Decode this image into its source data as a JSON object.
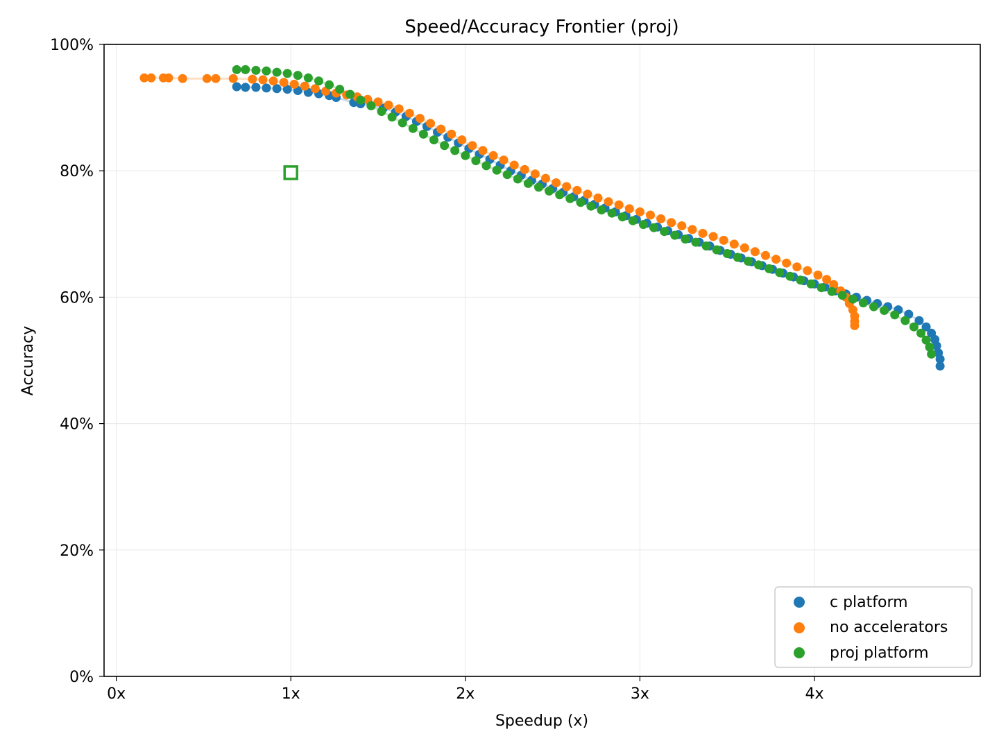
{
  "chart_data": {
    "type": "scatter",
    "title": "Speed/Accuracy Frontier (proj)",
    "xlabel": "Speedup (x)",
    "ylabel": "Accuracy",
    "xlim": [
      -0.07,
      4.95
    ],
    "ylim": [
      0,
      100
    ],
    "xticks": [
      {
        "value": 0,
        "label": "0x"
      },
      {
        "value": 1,
        "label": "1x"
      },
      {
        "value": 2,
        "label": "2x"
      },
      {
        "value": 3,
        "label": "3x"
      },
      {
        "value": 4,
        "label": "4x"
      }
    ],
    "yticks": [
      {
        "value": 0,
        "label": "0%"
      },
      {
        "value": 20,
        "label": "20%"
      },
      {
        "value": 40,
        "label": "40%"
      },
      {
        "value": 60,
        "label": "60%"
      },
      {
        "value": 80,
        "label": "80%"
      },
      {
        "value": 100,
        "label": "100%"
      }
    ],
    "grid": true,
    "legend_position": "bottom-right",
    "series": [
      {
        "name": "c platform",
        "color": "#1f77b4",
        "points": [
          [
            0.69,
            93.3
          ],
          [
            0.74,
            93.2
          ],
          [
            0.8,
            93.2
          ],
          [
            0.86,
            93.1
          ],
          [
            0.92,
            93.0
          ],
          [
            0.98,
            92.9
          ],
          [
            1.04,
            92.7
          ],
          [
            1.1,
            92.4
          ],
          [
            1.16,
            92.2
          ],
          [
            1.22,
            91.9
          ],
          [
            1.26,
            91.6
          ],
          [
            1.36,
            90.8
          ],
          [
            1.4,
            90.6
          ],
          [
            1.46,
            90.3
          ],
          [
            1.53,
            89.9
          ],
          [
            1.6,
            89.3
          ],
          [
            1.66,
            88.6
          ],
          [
            1.72,
            87.8
          ],
          [
            1.78,
            87.0
          ],
          [
            1.84,
            86.1
          ],
          [
            1.9,
            85.3
          ],
          [
            1.96,
            84.4
          ],
          [
            2.02,
            83.5
          ],
          [
            2.08,
            82.6
          ],
          [
            2.14,
            81.8
          ],
          [
            2.2,
            80.9
          ],
          [
            2.26,
            80.0
          ],
          [
            2.32,
            79.3
          ],
          [
            2.38,
            78.5
          ],
          [
            2.44,
            77.9
          ],
          [
            2.5,
            77.2
          ],
          [
            2.56,
            76.6
          ],
          [
            2.62,
            75.9
          ],
          [
            2.68,
            75.3
          ],
          [
            2.74,
            74.7
          ],
          [
            2.8,
            74.1
          ],
          [
            2.86,
            73.5
          ],
          [
            2.92,
            72.9
          ],
          [
            2.98,
            72.3
          ],
          [
            3.04,
            71.7
          ],
          [
            3.1,
            71.1
          ],
          [
            3.16,
            70.5
          ],
          [
            3.22,
            69.9
          ],
          [
            3.28,
            69.3
          ],
          [
            3.34,
            68.7
          ],
          [
            3.4,
            68.1
          ],
          [
            3.46,
            67.4
          ],
          [
            3.52,
            66.8
          ],
          [
            3.58,
            66.2
          ],
          [
            3.64,
            65.6
          ],
          [
            3.7,
            65.0
          ],
          [
            3.76,
            64.4
          ],
          [
            3.82,
            63.8
          ],
          [
            3.88,
            63.2
          ],
          [
            3.94,
            62.6
          ],
          [
            4.0,
            62.1
          ],
          [
            4.06,
            61.6
          ],
          [
            4.12,
            61.0
          ],
          [
            4.18,
            60.5
          ],
          [
            4.24,
            60.0
          ],
          [
            4.3,
            59.5
          ],
          [
            4.36,
            59.0
          ],
          [
            4.42,
            58.5
          ],
          [
            4.48,
            58.0
          ],
          [
            4.54,
            57.3
          ],
          [
            4.6,
            56.3
          ],
          [
            4.64,
            55.3
          ],
          [
            4.67,
            54.3
          ],
          [
            4.69,
            53.3
          ],
          [
            4.7,
            52.3
          ],
          [
            4.71,
            51.2
          ],
          [
            4.72,
            50.2
          ],
          [
            4.72,
            49.1
          ]
        ]
      },
      {
        "name": "no accelerators",
        "color": "#ff7f0e",
        "points": [
          [
            0.16,
            94.7
          ],
          [
            0.2,
            94.7
          ],
          [
            0.27,
            94.7
          ],
          [
            0.3,
            94.7
          ],
          [
            0.38,
            94.6
          ],
          [
            0.52,
            94.6
          ],
          [
            0.57,
            94.6
          ],
          [
            0.67,
            94.6
          ],
          [
            0.78,
            94.5
          ],
          [
            0.84,
            94.4
          ],
          [
            0.9,
            94.2
          ],
          [
            0.96,
            94.0
          ],
          [
            1.02,
            93.7
          ],
          [
            1.08,
            93.4
          ],
          [
            1.14,
            93.0
          ],
          [
            1.2,
            92.6
          ],
          [
            1.26,
            92.3
          ],
          [
            1.32,
            92.0
          ],
          [
            1.38,
            91.7
          ],
          [
            1.44,
            91.3
          ],
          [
            1.5,
            90.9
          ],
          [
            1.56,
            90.4
          ],
          [
            1.62,
            89.8
          ],
          [
            1.68,
            89.1
          ],
          [
            1.74,
            88.3
          ],
          [
            1.8,
            87.5
          ],
          [
            1.86,
            86.6
          ],
          [
            1.92,
            85.8
          ],
          [
            1.98,
            84.9
          ],
          [
            2.04,
            84.0
          ],
          [
            2.1,
            83.2
          ],
          [
            2.16,
            82.4
          ],
          [
            2.22,
            81.7
          ],
          [
            2.28,
            80.9
          ],
          [
            2.34,
            80.2
          ],
          [
            2.4,
            79.5
          ],
          [
            2.46,
            78.8
          ],
          [
            2.52,
            78.1
          ],
          [
            2.58,
            77.5
          ],
          [
            2.64,
            76.9
          ],
          [
            2.7,
            76.3
          ],
          [
            2.76,
            75.7
          ],
          [
            2.82,
            75.1
          ],
          [
            2.88,
            74.6
          ],
          [
            2.94,
            74.0
          ],
          [
            3.0,
            73.5
          ],
          [
            3.06,
            73.0
          ],
          [
            3.12,
            72.4
          ],
          [
            3.18,
            71.8
          ],
          [
            3.24,
            71.3
          ],
          [
            3.3,
            70.7
          ],
          [
            3.36,
            70.1
          ],
          [
            3.42,
            69.6
          ],
          [
            3.48,
            69.0
          ],
          [
            3.54,
            68.4
          ],
          [
            3.6,
            67.8
          ],
          [
            3.66,
            67.2
          ],
          [
            3.72,
            66.6
          ],
          [
            3.78,
            66.0
          ],
          [
            3.84,
            65.4
          ],
          [
            3.9,
            64.8
          ],
          [
            3.96,
            64.2
          ],
          [
            4.02,
            63.5
          ],
          [
            4.07,
            62.8
          ],
          [
            4.11,
            62.0
          ],
          [
            4.15,
            61.0
          ],
          [
            4.18,
            60.0
          ],
          [
            4.2,
            59.0
          ],
          [
            4.22,
            58.0
          ],
          [
            4.23,
            57.0
          ],
          [
            4.23,
            56.2
          ],
          [
            4.23,
            55.5
          ]
        ]
      },
      {
        "name": "proj platform",
        "color": "#2ca02c",
        "points": [
          [
            0.69,
            96.0
          ],
          [
            0.74,
            96.0
          ],
          [
            0.8,
            95.9
          ],
          [
            0.86,
            95.8
          ],
          [
            0.92,
            95.6
          ],
          [
            0.98,
            95.4
          ],
          [
            1.04,
            95.1
          ],
          [
            1.1,
            94.7
          ],
          [
            1.16,
            94.2
          ],
          [
            1.22,
            93.6
          ],
          [
            1.28,
            92.9
          ],
          [
            1.34,
            92.1
          ],
          [
            1.4,
            91.2
          ],
          [
            1.46,
            90.3
          ],
          [
            1.52,
            89.4
          ],
          [
            1.58,
            88.5
          ],
          [
            1.64,
            87.6
          ],
          [
            1.7,
            86.7
          ],
          [
            1.76,
            85.8
          ],
          [
            1.82,
            84.9
          ],
          [
            1.88,
            84.0
          ],
          [
            1.94,
            83.2
          ],
          [
            2.0,
            82.4
          ],
          [
            2.06,
            81.6
          ],
          [
            2.12,
            80.8
          ],
          [
            2.18,
            80.1
          ],
          [
            2.24,
            79.4
          ],
          [
            2.3,
            78.7
          ],
          [
            2.36,
            78.0
          ],
          [
            2.42,
            77.4
          ],
          [
            2.48,
            76.8
          ],
          [
            2.54,
            76.2
          ],
          [
            2.6,
            75.6
          ],
          [
            2.66,
            75.0
          ],
          [
            2.72,
            74.4
          ],
          [
            2.78,
            73.8
          ],
          [
            2.84,
            73.3
          ],
          [
            2.9,
            72.7
          ],
          [
            2.96,
            72.1
          ],
          [
            3.02,
            71.5
          ],
          [
            3.08,
            71.0
          ],
          [
            3.14,
            70.4
          ],
          [
            3.2,
            69.8
          ],
          [
            3.26,
            69.2
          ],
          [
            3.32,
            68.7
          ],
          [
            3.38,
            68.1
          ],
          [
            3.44,
            67.5
          ],
          [
            3.5,
            66.9
          ],
          [
            3.56,
            66.3
          ],
          [
            3.62,
            65.7
          ],
          [
            3.68,
            65.1
          ],
          [
            3.74,
            64.5
          ],
          [
            3.8,
            63.9
          ],
          [
            3.86,
            63.3
          ],
          [
            3.92,
            62.7
          ],
          [
            3.98,
            62.1
          ],
          [
            4.04,
            61.5
          ],
          [
            4.1,
            60.9
          ],
          [
            4.16,
            60.3
          ],
          [
            4.22,
            59.7
          ],
          [
            4.28,
            59.1
          ],
          [
            4.34,
            58.5
          ],
          [
            4.4,
            57.9
          ],
          [
            4.46,
            57.2
          ],
          [
            4.52,
            56.3
          ],
          [
            4.57,
            55.3
          ],
          [
            4.61,
            54.3
          ],
          [
            4.64,
            53.2
          ],
          [
            4.66,
            52.1
          ],
          [
            4.67,
            51.0
          ]
        ]
      }
    ],
    "baseline_marker": {
      "x": 1.0,
      "y": 79.7,
      "color": "#2ca02c",
      "shape": "hollow-square"
    }
  }
}
